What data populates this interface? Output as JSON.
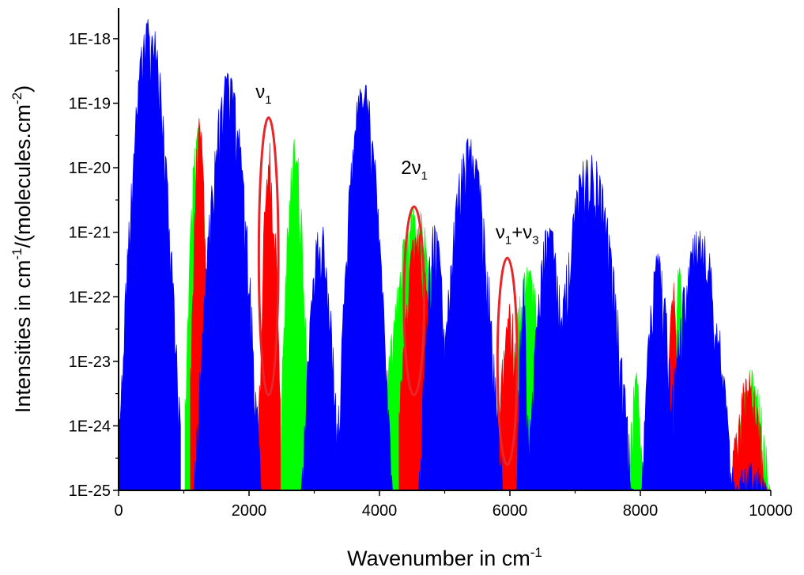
{
  "chart_data": {
    "type": "area",
    "title": "",
    "xlabel": "Wavenumber in cm",
    "xlabel_sup": "-1",
    "ylabel": {
      "parts": [
        {
          "t": "Intensities in cm",
          "sup": false
        },
        {
          "t": "-1",
          "sup": true
        },
        {
          "t": "/(molecules.cm",
          "sup": false
        },
        {
          "t": "-2",
          "sup": true
        },
        {
          "t": ")",
          "sup": false
        }
      ]
    },
    "xlim": [
      0,
      10000
    ],
    "ylim": [
      1e-25,
      3e-18
    ],
    "yscale": "log",
    "grid": false,
    "legend": "none",
    "x_ticks": [
      0,
      2000,
      4000,
      6000,
      8000,
      10000
    ],
    "x_tick_labels": [
      "0",
      "2000",
      "4000",
      "6000",
      "8000",
      "10000"
    ],
    "y_ticks": [
      1e-25,
      1e-24,
      1e-23,
      1e-22,
      1e-21,
      1e-20,
      1e-19,
      1e-18
    ],
    "y_tick_labels": [
      "1E-25",
      "1E-24",
      "1E-23",
      "1E-22",
      "1E-21",
      "1E-20",
      "1E-19",
      "1E-18"
    ],
    "series": [
      {
        "color": "#00ff00",
        "bands": [
          {
            "x0": 1020,
            "x1": 1400,
            "peak": 5e-20,
            "min_end": 5e-24
          },
          {
            "x0": 2450,
            "x1": 2950,
            "peak": 3e-20,
            "min_end": 1e-25
          },
          {
            "x0": 4100,
            "x1": 5000,
            "peak": 3e-21,
            "min_end": 4e-24
          },
          {
            "x0": 5900,
            "x1": 6650,
            "peak": 3e-22,
            "min_end": 1e-25
          },
          {
            "x0": 7800,
            "x1": 8050,
            "peak": 8e-24,
            "min_end": 1e-25
          },
          {
            "x0": 8480,
            "x1": 8700,
            "peak": 3e-22,
            "min_end": 1e-23
          },
          {
            "x0": 9400,
            "x1": 10000,
            "peak": 8e-24,
            "min_end": 1e-25
          }
        ]
      },
      {
        "color": "#ff0000",
        "bands": [
          {
            "x0": 1100,
            "x1": 1380,
            "peak": 7e-20,
            "min_end": 1e-23
          },
          {
            "x0": 2150,
            "x1": 2480,
            "peak": 2.5e-20,
            "min_end": 3e-24
          },
          {
            "x0": 4300,
            "x1": 4850,
            "peak": 1.2e-21,
            "min_end": 2e-24
          },
          {
            "x0": 5800,
            "x1": 6200,
            "peak": 8e-23,
            "min_end": 5e-25
          },
          {
            "x0": 8440,
            "x1": 8560,
            "peak": 2e-22,
            "min_end": 1e-23
          },
          {
            "x0": 9350,
            "x1": 9950,
            "peak": 7e-24,
            "min_end": 1e-25
          }
        ]
      },
      {
        "color": "#0000ff",
        "bands": [
          {
            "x0": 0,
            "x1": 950,
            "peak": 2.5e-18,
            "min_end": 1e-24
          },
          {
            "x0": 1150,
            "x1": 2200,
            "peak": 3e-19,
            "min_end": 1e-25
          },
          {
            "x0": 2800,
            "x1": 3400,
            "peak": 1.5e-21,
            "min_end": 1e-25
          },
          {
            "x0": 3300,
            "x1": 4200,
            "peak": 2.5e-19,
            "min_end": 1e-25
          },
          {
            "x0": 4600,
            "x1": 5100,
            "peak": 1.5e-21,
            "min_end": 1e-25
          },
          {
            "x0": 4850,
            "x1": 5900,
            "peak": 3e-20,
            "min_end": 1e-25
          },
          {
            "x0": 6100,
            "x1": 6300,
            "peak": 2e-22,
            "min_end": 1e-25
          },
          {
            "x0": 6250,
            "x1": 6950,
            "peak": 1.5e-21,
            "min_end": 1e-25
          },
          {
            "x0": 6550,
            "x1": 7900,
            "peak": 1.8e-20,
            "min_end": 1e-25
          },
          {
            "x0": 8000,
            "x1": 8550,
            "peak": 5e-22,
            "min_end": 1e-25
          },
          {
            "x0": 8350,
            "x1": 9450,
            "peak": 1.3e-21,
            "min_end": 1e-25
          },
          {
            "x0": 9400,
            "x1": 10000,
            "peak": 3e-25,
            "min_end": 1e-25
          }
        ]
      }
    ],
    "annotations": [
      {
        "label": "ν",
        "sub": "1",
        "label2": "",
        "sub2": "",
        "text_at": [
          2100,
          1.2e-19
        ],
        "ellipse_center": [
          2300,
          5e-23
        ],
        "ellipse_yrange": [
          3e-24,
          6e-20
        ],
        "ellipse_xhalf": 150
      },
      {
        "label": "2ν",
        "sub": "1",
        "label2": "",
        "sub2": "",
        "text_at": [
          4330,
          8e-21
        ],
        "ellipse_center": [
          4530,
          3e-23
        ],
        "ellipse_yrange": [
          3e-24,
          2.5e-21
        ],
        "ellipse_xhalf": 155
      },
      {
        "label": "ν",
        "sub": "1",
        "label2": "+ν",
        "sub2": "3",
        "text_at": [
          5780,
          8e-22
        ],
        "ellipse_center": [
          5960,
          5e-24
        ],
        "ellipse_yrange": [
          2.5e-25,
          4e-22
        ],
        "ellipse_xhalf": 150
      }
    ],
    "annotation_color": "#e8262a"
  }
}
